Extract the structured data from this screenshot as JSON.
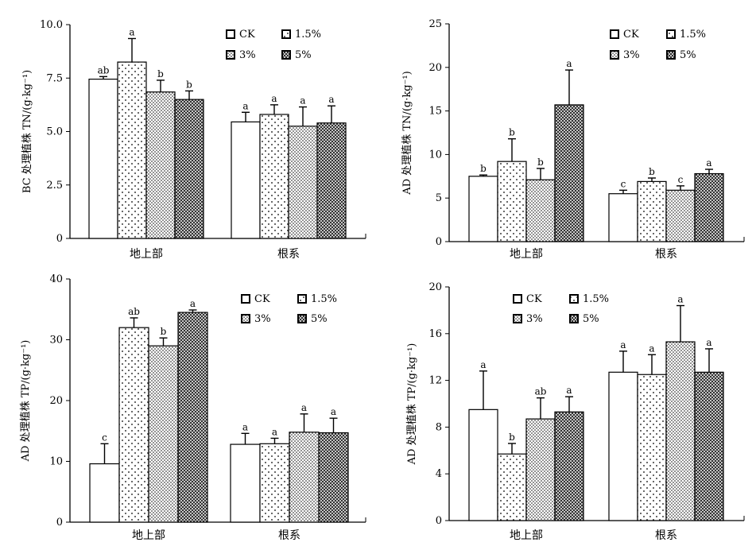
{
  "chart_data": [
    {
      "type": "bar",
      "ylabel": "BC 处理植株 TN/(g·kg⁻¹)",
      "ylim": [
        0,
        10
      ],
      "yticks": [
        "0",
        "2.5",
        "5.0",
        "7.5",
        "10.0"
      ],
      "categories": [
        "地上部",
        "根系"
      ],
      "series": [
        {
          "name": "CK",
          "values": [
            7.45,
            5.45
          ],
          "errors": [
            0.12,
            0.45
          ],
          "letters": [
            "ab",
            "a"
          ]
        },
        {
          "name": "1.5%",
          "values": [
            8.25,
            5.8
          ],
          "errors": [
            1.1,
            0.45
          ],
          "letters": [
            "a",
            "a"
          ]
        },
        {
          "name": "3%",
          "values": [
            6.85,
            5.25
          ],
          "errors": [
            0.55,
            0.9
          ],
          "letters": [
            "b",
            "a"
          ]
        },
        {
          "name": "5%",
          "values": [
            6.5,
            5.4
          ],
          "errors": [
            0.4,
            0.8
          ],
          "letters": [
            "b",
            "a"
          ]
        }
      ]
    },
    {
      "type": "bar",
      "ylabel": "AD 处理植株 TN/(g·kg⁻¹)",
      "ylim": [
        0,
        25
      ],
      "yticks": [
        "0",
        "5",
        "10",
        "15",
        "20",
        "25"
      ],
      "categories": [
        "地上部",
        "根系"
      ],
      "series": [
        {
          "name": "CK",
          "values": [
            7.5,
            5.5
          ],
          "errors": [
            0.15,
            0.4
          ],
          "letters": [
            "b",
            "c"
          ]
        },
        {
          "name": "1.5%",
          "values": [
            9.2,
            6.9
          ],
          "errors": [
            2.6,
            0.4
          ],
          "letters": [
            "b",
            "b"
          ]
        },
        {
          "name": "3%",
          "values": [
            7.1,
            5.9
          ],
          "errors": [
            1.3,
            0.5
          ],
          "letters": [
            "b",
            "c"
          ]
        },
        {
          "name": "5%",
          "values": [
            15.7,
            7.8
          ],
          "errors": [
            4.0,
            0.5
          ],
          "letters": [
            "a",
            "a"
          ]
        }
      ]
    },
    {
      "type": "bar",
      "ylabel": "AD 处理植株 TP/(g·kg⁻¹)",
      "ylim": [
        0,
        40
      ],
      "yticks": [
        "0",
        "10",
        "20",
        "30",
        "40"
      ],
      "categories": [
        "地上部",
        "根系"
      ],
      "series": [
        {
          "name": "CK",
          "values": [
            9.6,
            12.8
          ],
          "errors": [
            3.3,
            1.8
          ],
          "letters": [
            "c",
            "a"
          ]
        },
        {
          "name": "1.5%",
          "values": [
            32.0,
            12.9
          ],
          "errors": [
            1.6,
            0.9
          ],
          "letters": [
            "ab",
            "a"
          ]
        },
        {
          "name": "3%",
          "values": [
            29.0,
            14.8
          ],
          "errors": [
            1.3,
            3.0
          ],
          "letters": [
            "b",
            "a"
          ]
        },
        {
          "name": "5%",
          "values": [
            34.5,
            14.7
          ],
          "errors": [
            0.4,
            2.4
          ],
          "letters": [
            "a",
            "a"
          ]
        }
      ]
    },
    {
      "type": "bar",
      "ylabel": "AD 处理植株 TP/(g·kg⁻¹)",
      "ylim": [
        0,
        20
      ],
      "yticks": [
        "0",
        "4",
        "8",
        "12",
        "16",
        "20"
      ],
      "categories": [
        "地上部",
        "根系"
      ],
      "series": [
        {
          "name": "CK",
          "values": [
            9.5,
            12.7
          ],
          "errors": [
            3.3,
            1.8
          ],
          "letters": [
            "a",
            "a"
          ]
        },
        {
          "name": "1.5%",
          "values": [
            5.7,
            12.5
          ],
          "errors": [
            0.9,
            1.7
          ],
          "letters": [
            "b",
            "a"
          ]
        },
        {
          "name": "3%",
          "values": [
            8.7,
            15.3
          ],
          "errors": [
            1.8,
            3.1
          ],
          "letters": [
            "ab",
            "a"
          ]
        },
        {
          "name": "5%",
          "values": [
            9.3,
            12.7
          ],
          "errors": [
            1.3,
            2.0
          ],
          "letters": [
            "a",
            "a"
          ]
        }
      ]
    }
  ]
}
